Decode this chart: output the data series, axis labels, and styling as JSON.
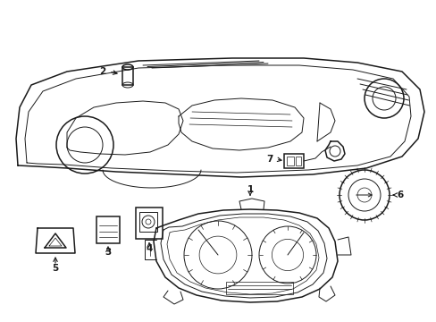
{
  "background_color": "#ffffff",
  "line_color": "#1a1a1a",
  "fig_width": 4.89,
  "fig_height": 3.6,
  "dpi": 100,
  "label_fontsize": 7.5,
  "lw_main": 1.1,
  "lw_thin": 0.7,
  "lw_inner": 0.5
}
